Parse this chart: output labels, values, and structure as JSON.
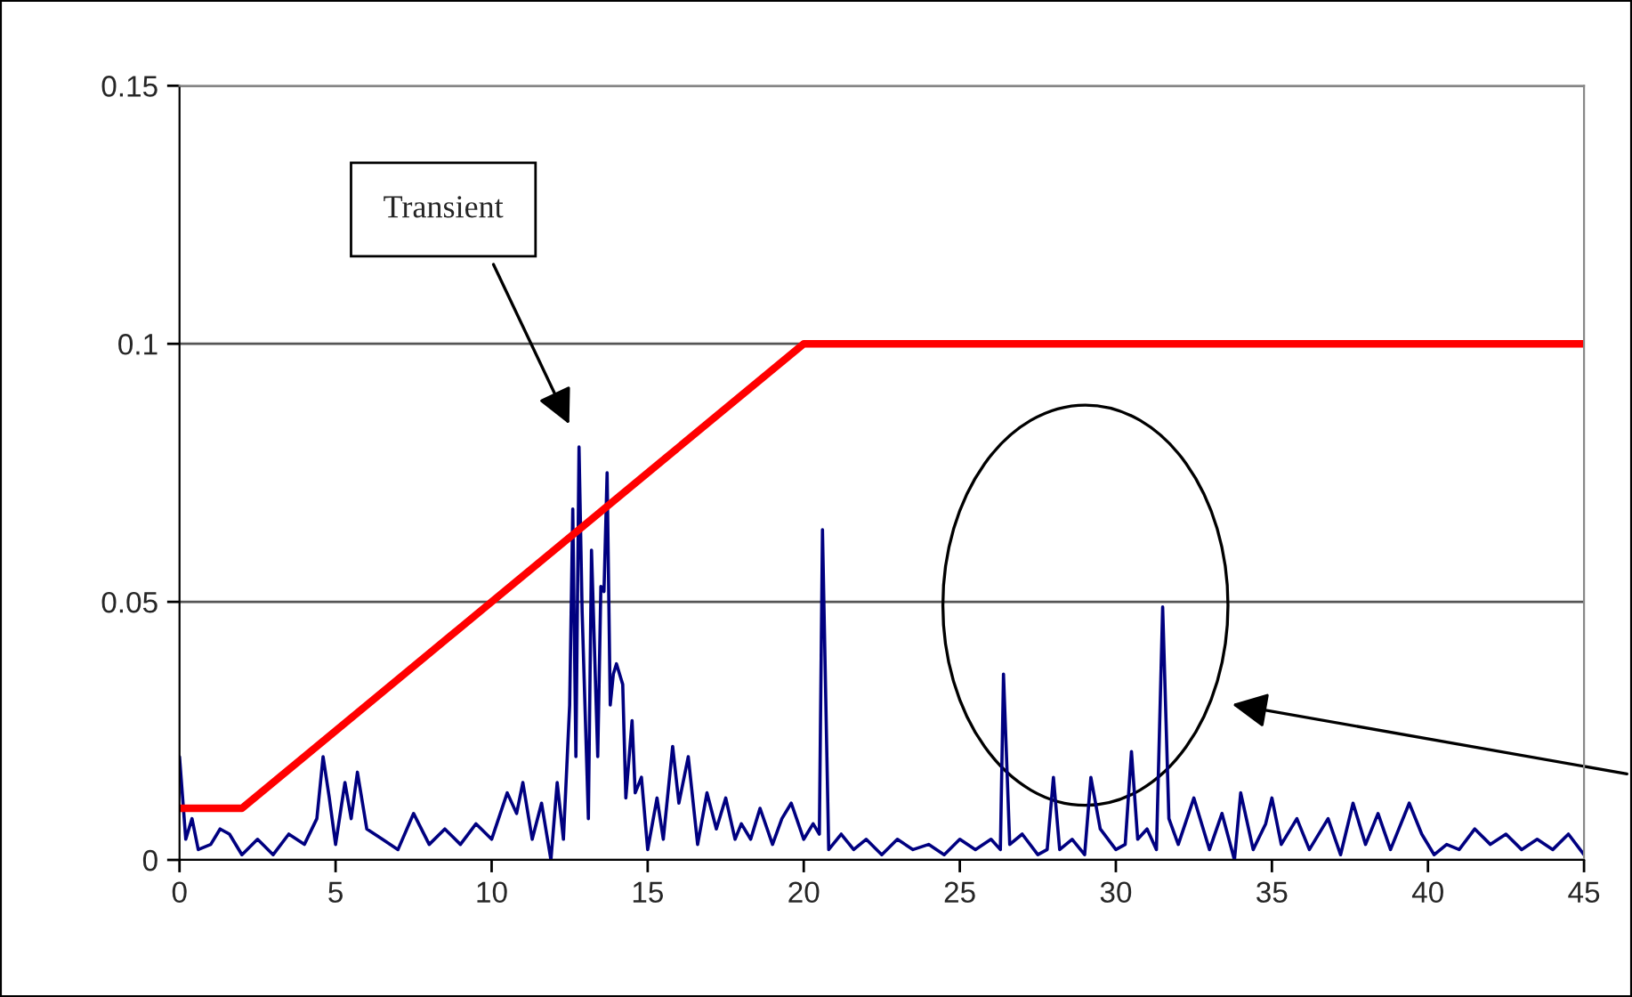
{
  "chart_data": {
    "type": "line",
    "xlim": [
      0,
      45
    ],
    "xticks": [
      0,
      5,
      10,
      15,
      20,
      25,
      30,
      35,
      40,
      45
    ],
    "ylim": [
      0,
      0.15
    ],
    "yticks": [
      0,
      0.05,
      0.1,
      0.15
    ],
    "grid": "y",
    "annotations": [
      "Transient"
    ],
    "series": [
      {
        "color": "#000080",
        "x": [
          0,
          0.2,
          0.4,
          0.6,
          1,
          1.3,
          1.6,
          2,
          2.5,
          3,
          3.5,
          4,
          4.4,
          4.6,
          4.8,
          5,
          5.3,
          5.5,
          5.7,
          6,
          6.5,
          7,
          7.5,
          8,
          8.5,
          9,
          9.5,
          10,
          10.5,
          10.8,
          11,
          11.3,
          11.6,
          11.9,
          12.1,
          12.3,
          12.5,
          12.6,
          12.7,
          12.8,
          12.9,
          13.1,
          13.2,
          13.4,
          13.5,
          13.6,
          13.7,
          13.8,
          13.9,
          14,
          14.2,
          14.3,
          14.5,
          14.6,
          14.8,
          15,
          15.3,
          15.5,
          15.8,
          16,
          16.3,
          16.6,
          16.9,
          17.2,
          17.5,
          17.8,
          18,
          18.3,
          18.6,
          19,
          19.3,
          19.6,
          20,
          20.3,
          20.5,
          20.6,
          20.8,
          21.2,
          21.6,
          22,
          22.5,
          23,
          23.5,
          24,
          24.5,
          25,
          25.5,
          26,
          26.3,
          26.4,
          26.6,
          27,
          27.5,
          27.8,
          28,
          28.2,
          28.6,
          29,
          29.2,
          29.5,
          30,
          30.3,
          30.5,
          30.7,
          31,
          31.3,
          31.5,
          31.7,
          32,
          32.5,
          33,
          33.4,
          33.8,
          34,
          34.4,
          34.8,
          35,
          35.3,
          35.8,
          36.2,
          36.8,
          37.2,
          37.6,
          38,
          38.4,
          38.8,
          39.4,
          39.8,
          40.2,
          40.6,
          41,
          41.5,
          42,
          42.5,
          43,
          43.5,
          44,
          44.5,
          45
        ],
        "values": [
          0.02,
          0.004,
          0.008,
          0.002,
          0.003,
          0.006,
          0.005,
          0.001,
          0.004,
          0.001,
          0.005,
          0.003,
          0.008,
          0.02,
          0.012,
          0.003,
          0.015,
          0.008,
          0.017,
          0.006,
          0.004,
          0.002,
          0.009,
          0.003,
          0.006,
          0.003,
          0.007,
          0.004,
          0.013,
          0.009,
          0.015,
          0.004,
          0.011,
          0.0,
          0.015,
          0.004,
          0.03,
          0.068,
          0.02,
          0.08,
          0.048,
          0.008,
          0.06,
          0.02,
          0.053,
          0.052,
          0.075,
          0.03,
          0.036,
          0.038,
          0.034,
          0.012,
          0.027,
          0.013,
          0.016,
          0.002,
          0.012,
          0.004,
          0.022,
          0.011,
          0.02,
          0.003,
          0.013,
          0.006,
          0.012,
          0.004,
          0.007,
          0.004,
          0.01,
          0.003,
          0.008,
          0.011,
          0.004,
          0.007,
          0.005,
          0.064,
          0.002,
          0.005,
          0.002,
          0.004,
          0.001,
          0.004,
          0.002,
          0.003,
          0.001,
          0.004,
          0.002,
          0.004,
          0.002,
          0.036,
          0.003,
          0.005,
          0.001,
          0.002,
          0.016,
          0.002,
          0.004,
          0.001,
          0.016,
          0.006,
          0.002,
          0.003,
          0.021,
          0.004,
          0.006,
          0.002,
          0.049,
          0.008,
          0.003,
          0.012,
          0.002,
          0.009,
          0.0,
          0.013,
          0.002,
          0.007,
          0.012,
          0.003,
          0.008,
          0.002,
          0.008,
          0.001,
          0.011,
          0.003,
          0.009,
          0.002,
          0.011,
          0.005,
          0.001,
          0.003,
          0.002,
          0.006,
          0.003,
          0.005,
          0.002,
          0.004,
          0.002,
          0.005,
          0.001
        ]
      },
      {
        "color": "#ff0000",
        "x": [
          0,
          2,
          20,
          45
        ],
        "values": [
          0.01,
          0.01,
          0.1,
          0.1
        ]
      }
    ]
  }
}
